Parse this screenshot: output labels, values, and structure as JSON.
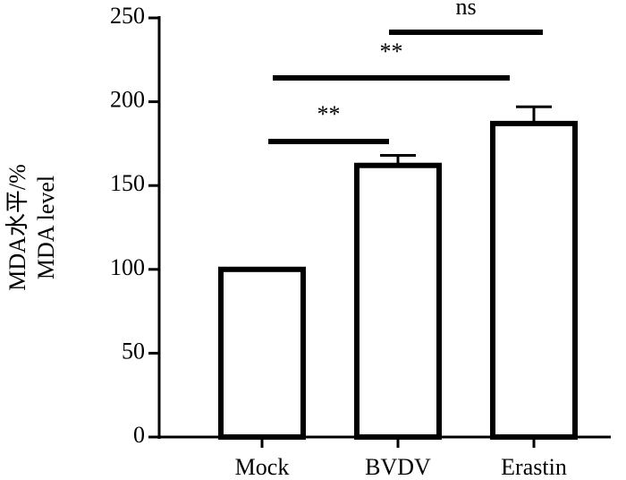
{
  "chart_data": {
    "type": "bar",
    "y_label_lines": [
      "MDA水平/%",
      "MDA level"
    ],
    "categories": [
      "Mock",
      "BVDV",
      "Erastin"
    ],
    "values": [
      100,
      162,
      187
    ],
    "errors": [
      null,
      6,
      10
    ],
    "color": "#ffffff",
    "ylim": [
      0,
      250
    ],
    "yticks": [
      0,
      50,
      100,
      150,
      200,
      250
    ],
    "annotations": [
      "**",
      "**",
      "ns"
    ]
  }
}
